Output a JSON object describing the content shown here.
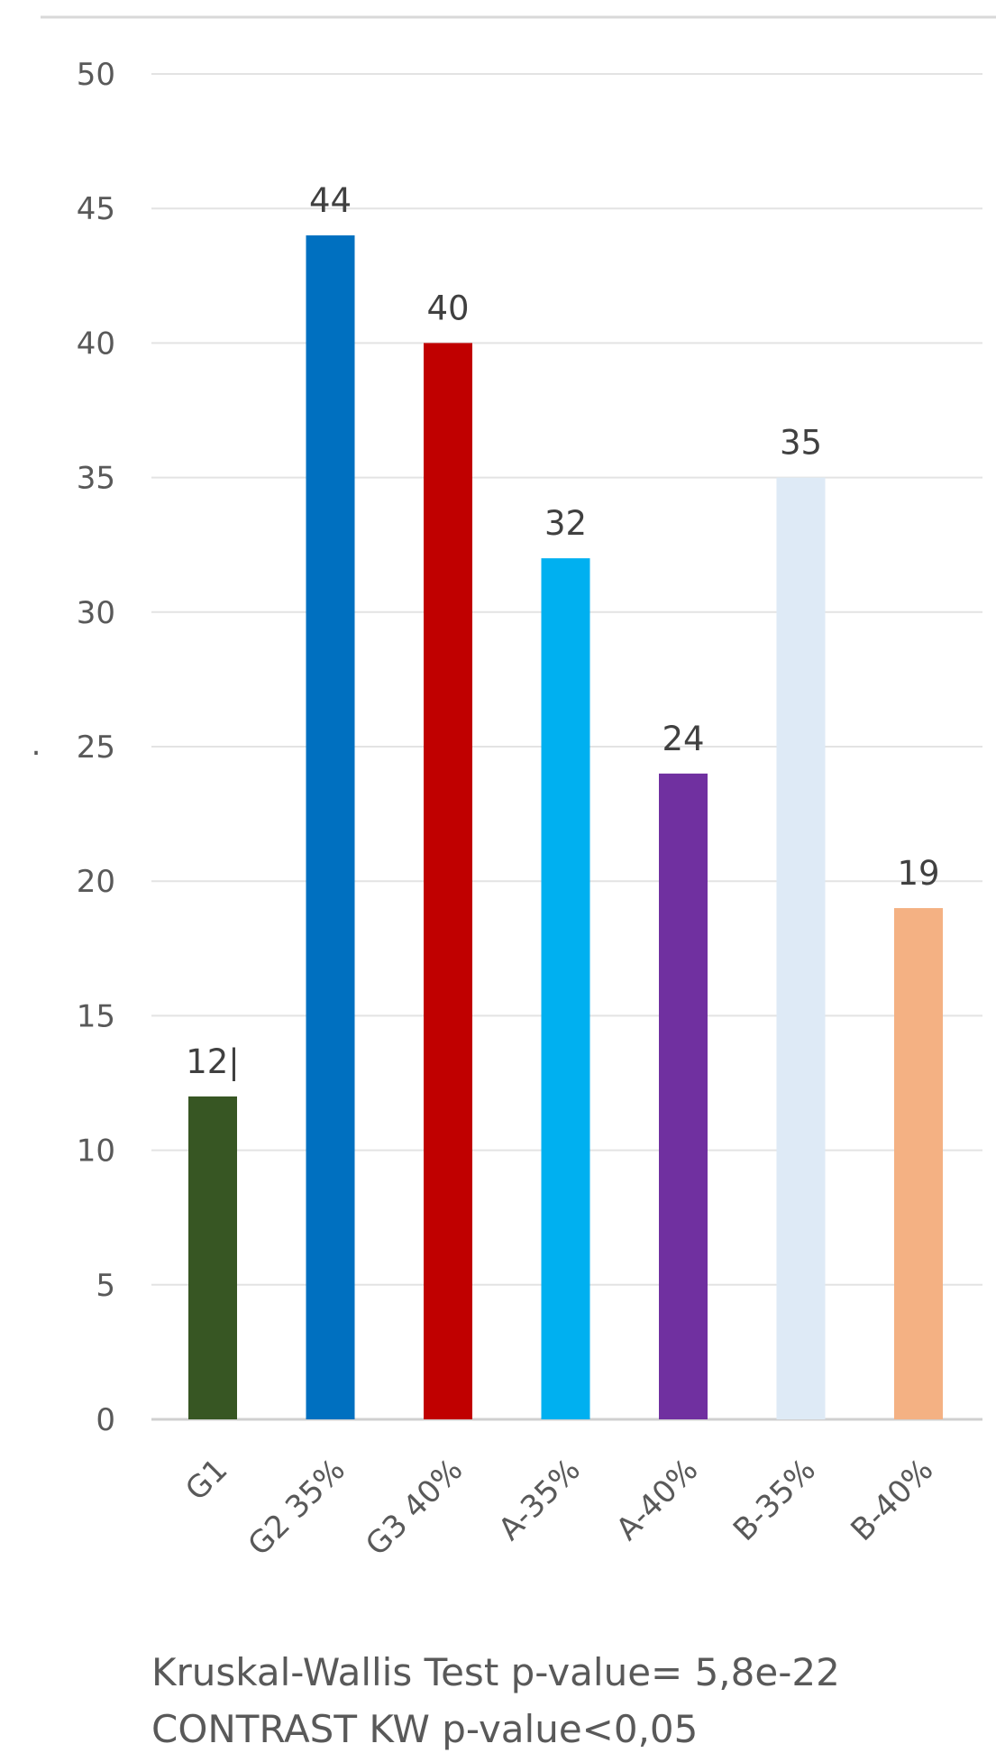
{
  "chart_data": {
    "type": "bar",
    "categories": [
      "G1",
      "G2 35%",
      "G3 40%",
      "A-35%",
      "A-40%",
      "B-35%",
      "B-40%"
    ],
    "values": [
      12,
      44,
      40,
      32,
      24,
      35,
      19
    ],
    "data_labels": [
      "12|",
      "44",
      "40",
      "32",
      "24",
      "35",
      "19"
    ],
    "colors": [
      "#375623",
      "#0070C0",
      "#C00000",
      "#00B0F0",
      "#7030A0",
      "#DEEAF6",
      "#F4B183"
    ],
    "ylim": [
      0,
      50
    ],
    "yticks": [
      0,
      5,
      10,
      15,
      20,
      25,
      30,
      35,
      40,
      45,
      50
    ],
    "grid": true,
    "legend": "none",
    "title": "",
    "xlabel": "",
    "ylabel": ""
  },
  "footnote": {
    "line1": "Kruskal-Wallis Test p-value= 5,8e-22",
    "line2": "CONTRAST KW p-value<0,05"
  }
}
